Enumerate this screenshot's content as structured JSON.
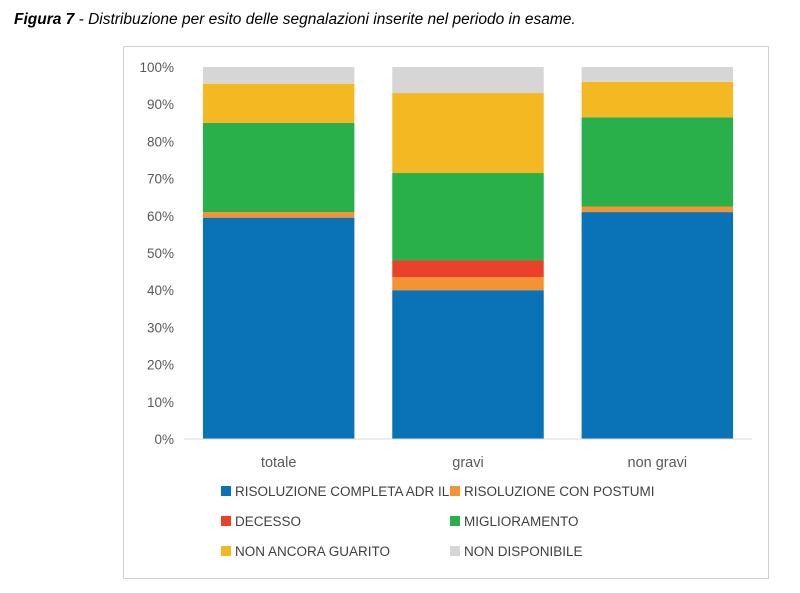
{
  "caption": {
    "figure_label": "Figura 7",
    "text": " - Distribuzione per esito delle segnalazioni inserite nel periodo in esame."
  },
  "chart_data": {
    "type": "bar",
    "stacked": true,
    "percent_stacked": true,
    "categories": [
      "totale",
      "gravi",
      "non gravi"
    ],
    "series": [
      {
        "name": "RISOLUZIONE COMPLETA ADR IL",
        "color": "#0A72B6",
        "values": [
          59.5,
          40.0,
          61.0
        ]
      },
      {
        "name": "RISOLUZIONE CON POSTUMI",
        "color": "#F39332",
        "values": [
          1.5,
          3.5,
          1.5
        ]
      },
      {
        "name": "DECESSO",
        "color": "#EA412A",
        "values": [
          0.0,
          4.5,
          0.0
        ]
      },
      {
        "name": "MIGLIORAMENTO",
        "color": "#2AB04A",
        "values": [
          24.0,
          23.5,
          24.0
        ]
      },
      {
        "name": "NON ANCORA GUARITO",
        "color": "#F4B922",
        "values": [
          10.5,
          21.5,
          9.5
        ]
      },
      {
        "name": "NON DISPONIBILE",
        "color": "#D7D6D6",
        "values": [
          4.5,
          7.0,
          4.0
        ]
      }
    ],
    "ylim": [
      0,
      100
    ],
    "yticks": [
      "0%",
      "10%",
      "20%",
      "30%",
      "40%",
      "50%",
      "60%",
      "70%",
      "80%",
      "90%",
      "100%"
    ],
    "grid": false,
    "legend_position": "bottom"
  }
}
